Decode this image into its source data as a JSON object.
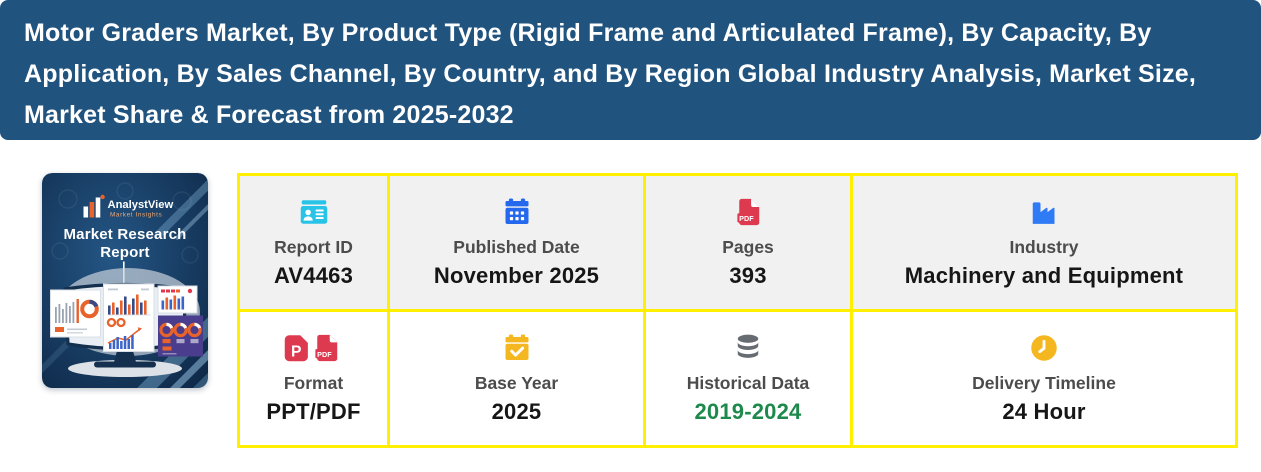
{
  "header": {
    "bg_color": "#21537f",
    "title_lines": [
      "Motor Graders Market, By Product Type (Rigid Frame and Articulated Frame), By Capacity, By",
      "Application, By Sales Channel, By Country, and By Region Global Industry Analysis, Market Size,",
      "Market Share & Forecast from 2025-2032"
    ]
  },
  "thumbnail": {
    "brand_name": "AnalystView",
    "brand_tagline": "Market Insights",
    "cover_title_line1": "Market Research",
    "cover_title_line2": "Report"
  },
  "info_grid": {
    "border_color": "#ffef00",
    "top_row_bg": "#f1f1f2",
    "cells": [
      {
        "icon": "id-card-icon",
        "icon_color": "#29c3e8",
        "label": "Report ID",
        "value": "AV4463"
      },
      {
        "icon": "calendar-icon",
        "icon_color": "#2468ee",
        "label": "Published Date",
        "value": "November 2025"
      },
      {
        "icon": "pdf-file-icon",
        "icon_color": "#dd3a50",
        "label": "Pages",
        "value": "393"
      },
      {
        "icon": "factory-icon",
        "icon_color": "#2f7bf6",
        "label": "Industry",
        "value": "Machinery and Equipment"
      },
      {
        "icon": "ppt-pdf-files-icon",
        "icon_color": "#dd3a50",
        "label": "Format",
        "value": "PPT/PDF"
      },
      {
        "icon": "calendar-check-icon",
        "icon_color": "#f4b71f",
        "label": "Base Year",
        "value": "2025"
      },
      {
        "icon": "database-icon",
        "icon_color": "#676c72",
        "label": "Historical Data",
        "value": "2019-2024",
        "value_color": "#1d8a4c"
      },
      {
        "icon": "clock-icon",
        "icon_color": "#f4b71f",
        "label": "Delivery Timeline",
        "value": "24 Hour"
      }
    ]
  }
}
